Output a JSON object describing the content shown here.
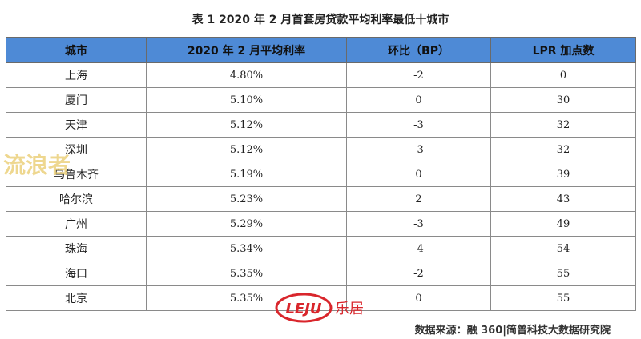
{
  "title": "表 1  2020 年 2 月首套房贷款平均利率最低十城市",
  "table": {
    "headers": [
      "城市",
      "2020 年 2 月平均利率",
      "环比（BP）",
      "LPR 加点数"
    ],
    "rows": [
      {
        "city": "上海",
        "rate": "4.80%",
        "mom": "-2",
        "lpr": "0"
      },
      {
        "city": "厦门",
        "rate": "5.10%",
        "mom": "0",
        "lpr": "30"
      },
      {
        "city": "天津",
        "rate": "5.12%",
        "mom": "-3",
        "lpr": "32"
      },
      {
        "city": "深圳",
        "rate": "5.12%",
        "mom": "-3",
        "lpr": "32"
      },
      {
        "city": "乌鲁木齐",
        "rate": "5.19%",
        "mom": "0",
        "lpr": "39"
      },
      {
        "city": "哈尔滨",
        "rate": "5.23%",
        "mom": "2",
        "lpr": "43"
      },
      {
        "city": "广州",
        "rate": "5.29%",
        "mom": "-3",
        "lpr": "49"
      },
      {
        "city": "珠海",
        "rate": "5.34%",
        "mom": "-4",
        "lpr": "54"
      },
      {
        "city": "海口",
        "rate": "5.35%",
        "mom": "-2",
        "lpr": "55"
      },
      {
        "city": "北京",
        "rate": "5.35%",
        "mom": "0",
        "lpr": "55"
      }
    ]
  },
  "source": "数据来源：融 360|简普科技大数据研究院",
  "logo": {
    "text_latin": "LEJU",
    "text_cn": "乐居",
    "color": "#d9262c"
  },
  "watermark": {
    "text": "流浪者",
    "color": "#e8c96a"
  },
  "colors": {
    "header_bg": "#4e8ad6",
    "negative": "#d9262c"
  }
}
